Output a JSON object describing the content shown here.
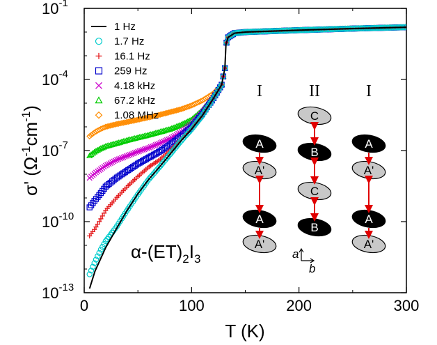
{
  "chart_data": {
    "type": "scatter",
    "xlabel": "T (K)",
    "ylabel": "σ' (Ω⁻¹cm⁻¹)",
    "ylabel_parts": {
      "sym": "σ' (Ω",
      "exp1": "-1",
      "mid": "cm",
      "exp2": "-1",
      "end": ")"
    },
    "xlim": [
      0,
      300
    ],
    "ylim": [
      1e-13,
      0.1
    ],
    "yscale": "log",
    "x_ticks": [
      0,
      100,
      200,
      300
    ],
    "y_ticks": [
      {
        "value": 1e-13,
        "base": "10",
        "exp": "-13"
      },
      {
        "value": 1e-10,
        "base": "10",
        "exp": "-10"
      },
      {
        "value": 1e-07,
        "base": "10",
        "exp": "-7"
      },
      {
        "value": 0.0001,
        "base": "10",
        "exp": "-4"
      },
      {
        "value": 0.1,
        "base": "10",
        "exp": "-1"
      }
    ],
    "legend_position": "top-left",
    "annotation": {
      "prefix": "α-(ET)",
      "sub1": "2",
      "mid": "I",
      "sub2": "3"
    },
    "series": [
      {
        "name": "1 Hz",
        "marker": "line",
        "color": "#000000",
        "points": [
          [
            5,
            1.5e-13
          ],
          [
            10,
            8e-13
          ],
          [
            20,
            8e-12
          ],
          [
            30,
            5e-11
          ],
          [
            40,
            3e-10
          ],
          [
            50,
            1.5e-09
          ],
          [
            60,
            6e-09
          ],
          [
            70,
            2e-08
          ],
          [
            80,
            7e-08
          ],
          [
            90,
            2.5e-07
          ],
          [
            100,
            8e-07
          ],
          [
            110,
            3e-06
          ],
          [
            120,
            1.5e-05
          ],
          [
            128,
            6e-05
          ],
          [
            131,
            0.0003
          ],
          [
            132,
            0.003
          ],
          [
            134,
            0.006
          ],
          [
            140,
            0.009
          ],
          [
            150,
            0.01
          ],
          [
            200,
            0.012
          ],
          [
            250,
            0.014
          ],
          [
            300,
            0.016
          ]
        ]
      },
      {
        "name": "1.7 Hz",
        "marker": "circle",
        "color": "#00CCCC",
        "points": [
          [
            5,
            6e-13
          ],
          [
            10,
            2e-12
          ],
          [
            15,
            6e-12
          ],
          [
            20,
            1.5e-11
          ],
          [
            30,
            6e-11
          ],
          [
            40,
            3e-10
          ],
          [
            50,
            1.4e-09
          ],
          [
            60,
            6e-09
          ],
          [
            70,
            2e-08
          ],
          [
            80,
            7e-08
          ],
          [
            90,
            2.5e-07
          ],
          [
            100,
            8e-07
          ],
          [
            110,
            3e-06
          ],
          [
            120,
            1.5e-05
          ],
          [
            128,
            6e-05
          ],
          [
            131,
            0.0003
          ],
          [
            132,
            0.003
          ],
          [
            134,
            0.006
          ],
          [
            140,
            0.009
          ],
          [
            150,
            0.01
          ],
          [
            200,
            0.012
          ],
          [
            250,
            0.014
          ],
          [
            300,
            0.016
          ]
        ]
      },
      {
        "name": "16.1 Hz",
        "marker": "plus",
        "color": "#E41A1C",
        "points": [
          [
            5,
            2.5e-11
          ],
          [
            10,
            5e-11
          ],
          [
            15,
            1.2e-10
          ],
          [
            20,
            3e-10
          ],
          [
            30,
            1e-09
          ],
          [
            40,
            3e-09
          ],
          [
            50,
            8e-09
          ],
          [
            60,
            2e-08
          ],
          [
            70,
            4e-08
          ],
          [
            80,
            1e-07
          ],
          [
            90,
            3e-07
          ],
          [
            100,
            9e-07
          ],
          [
            110,
            3e-06
          ],
          [
            120,
            1.5e-05
          ],
          [
            128,
            6e-05
          ],
          [
            131,
            0.0003
          ],
          [
            132,
            0.003
          ],
          [
            134,
            0.006
          ],
          [
            140,
            0.009
          ],
          [
            150,
            0.01
          ],
          [
            200,
            0.012
          ],
          [
            250,
            0.014
          ],
          [
            300,
            0.016
          ]
        ]
      },
      {
        "name": "259 Hz",
        "marker": "square",
        "color": "#0000CC",
        "points": [
          [
            5,
            4e-10
          ],
          [
            10,
            8e-10
          ],
          [
            15,
            1.5e-09
          ],
          [
            20,
            3e-09
          ],
          [
            30,
            7e-09
          ],
          [
            40,
            1.4e-08
          ],
          [
            50,
            2.8e-08
          ],
          [
            60,
            5e-08
          ],
          [
            70,
            9e-08
          ],
          [
            80,
            1.8e-07
          ],
          [
            90,
            4e-07
          ],
          [
            100,
            1e-06
          ],
          [
            110,
            3.5e-06
          ],
          [
            120,
            1.5e-05
          ],
          [
            128,
            6e-05
          ],
          [
            131,
            0.0003
          ],
          [
            132,
            0.003
          ],
          [
            134,
            0.006
          ],
          [
            140,
            0.009
          ],
          [
            150,
            0.01
          ],
          [
            200,
            0.012
          ],
          [
            250,
            0.014
          ],
          [
            300,
            0.016
          ]
        ]
      },
      {
        "name": "4.18 kHz",
        "marker": "cross",
        "color": "#CC00CC",
        "points": [
          [
            5,
            7e-09
          ],
          [
            10,
            1.1e-08
          ],
          [
            15,
            1.6e-08
          ],
          [
            20,
            2.3e-08
          ],
          [
            30,
            4e-08
          ],
          [
            40,
            6e-08
          ],
          [
            50,
            9e-08
          ],
          [
            60,
            1.3e-07
          ],
          [
            70,
            2e-07
          ],
          [
            80,
            3.2e-07
          ],
          [
            90,
            6e-07
          ],
          [
            100,
            1.3e-06
          ],
          [
            110,
            4e-06
          ],
          [
            120,
            1.6e-05
          ],
          [
            128,
            6e-05
          ],
          [
            131,
            0.0003
          ],
          [
            132,
            0.003
          ],
          [
            134,
            0.006
          ],
          [
            140,
            0.009
          ],
          [
            150,
            0.01
          ],
          [
            200,
            0.012
          ],
          [
            250,
            0.014
          ],
          [
            300,
            0.016
          ]
        ]
      },
      {
        "name": "67.2 kHz",
        "marker": "triangle",
        "color": "#00CC00",
        "points": [
          [
            5,
            6e-08
          ],
          [
            10,
            9e-08
          ],
          [
            15,
            1.2e-07
          ],
          [
            20,
            1.5e-07
          ],
          [
            30,
            2e-07
          ],
          [
            40,
            2.7e-07
          ],
          [
            50,
            3.5e-07
          ],
          [
            60,
            4.5e-07
          ],
          [
            70,
            6e-07
          ],
          [
            80,
            8e-07
          ],
          [
            90,
            1.2e-06
          ],
          [
            100,
            2e-06
          ],
          [
            110,
            5e-06
          ],
          [
            120,
            1.8e-05
          ],
          [
            128,
            6e-05
          ],
          [
            131,
            0.0003
          ],
          [
            132,
            0.003
          ],
          [
            134,
            0.006
          ],
          [
            140,
            0.009
          ],
          [
            150,
            0.01
          ],
          [
            200,
            0.012
          ],
          [
            250,
            0.014
          ],
          [
            300,
            0.016
          ]
        ]
      },
      {
        "name": "1.08 MHz",
        "marker": "diamond",
        "color": "#FF8C00",
        "points": [
          [
            5,
            4e-07
          ],
          [
            10,
            6e-07
          ],
          [
            15,
            8e-07
          ],
          [
            20,
            1e-06
          ],
          [
            30,
            1.3e-06
          ],
          [
            40,
            1.6e-06
          ],
          [
            50,
            2e-06
          ],
          [
            60,
            2.5e-06
          ],
          [
            70,
            3.2e-06
          ],
          [
            80,
            4.2e-06
          ],
          [
            90,
            5.5e-06
          ],
          [
            100,
            8e-06
          ],
          [
            110,
            1.3e-05
          ],
          [
            120,
            2.5e-05
          ],
          [
            128,
            6e-05
          ],
          [
            131,
            0.0003
          ],
          [
            132,
            0.003
          ],
          [
            134,
            0.006
          ],
          [
            140,
            0.009
          ],
          [
            150,
            0.01
          ],
          [
            200,
            0.012
          ],
          [
            250,
            0.014
          ],
          [
            300,
            0.016
          ]
        ]
      }
    ]
  },
  "inset": {
    "column_labels": [
      "I",
      "II",
      "I"
    ],
    "columns": [
      [
        "A",
        "A'",
        "A",
        "A'"
      ],
      [
        "C",
        "B",
        "C",
        "B"
      ],
      [
        "A",
        "A'",
        "A",
        "A'"
      ]
    ],
    "axis_letters": {
      "a": "a",
      "b": "b"
    },
    "arrow_color": "#E00000"
  }
}
